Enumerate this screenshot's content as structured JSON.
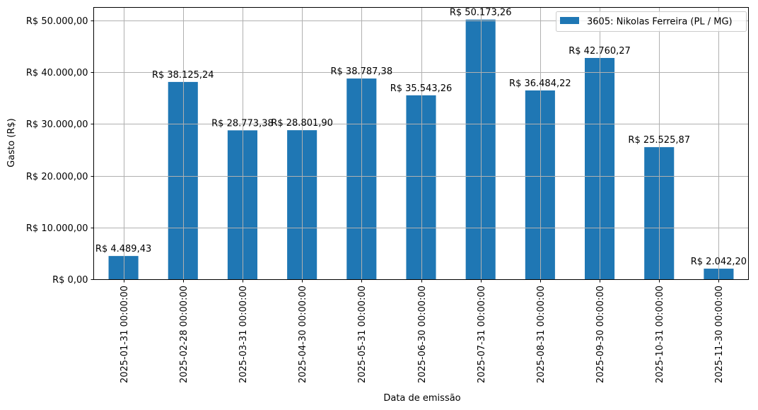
{
  "chart_data": {
    "type": "bar",
    "title": "",
    "xlabel": "Data de emissão",
    "ylabel": "Gasto (R$)",
    "ylim": [
      0,
      52600
    ],
    "grid": true,
    "legend_position": "upper right",
    "bar_color": "#1f77b4",
    "categories": [
      "2025-01-31 00:00:00",
      "2025-02-28 00:00:00",
      "2025-03-31 00:00:00",
      "2025-04-30 00:00:00",
      "2025-05-31 00:00:00",
      "2025-06-30 00:00:00",
      "2025-07-31 00:00:00",
      "2025-08-31 00:00:00",
      "2025-09-30 00:00:00",
      "2025-10-31 00:00:00",
      "2025-11-30 00:00:00"
    ],
    "series": [
      {
        "name": "3605: Nikolas Ferreira (PL / MG)",
        "values": [
          4489.43,
          38125.24,
          28773.38,
          28801.9,
          38787.38,
          35543.26,
          50173.26,
          36484.22,
          42760.27,
          25525.87,
          2042.2
        ],
        "labels": [
          "R$ 4.489,43",
          "R$ 38.125,24",
          "R$ 28.773,38",
          "R$ 28.801,90",
          "R$ 38.787,38",
          "R$ 35.543,26",
          "R$ 50.173,26",
          "R$ 36.484,22",
          "R$ 42.760,27",
          "R$ 25.525,87",
          "R$ 2.042,20"
        ]
      }
    ],
    "yticks": [
      0,
      10000,
      20000,
      30000,
      40000,
      50000
    ],
    "ytick_labels": [
      "R$ 0,00",
      "R$ 10.000,00",
      "R$ 20.000,00",
      "R$ 30.000,00",
      "R$ 40.000,00",
      "R$ 50.000,00"
    ]
  }
}
